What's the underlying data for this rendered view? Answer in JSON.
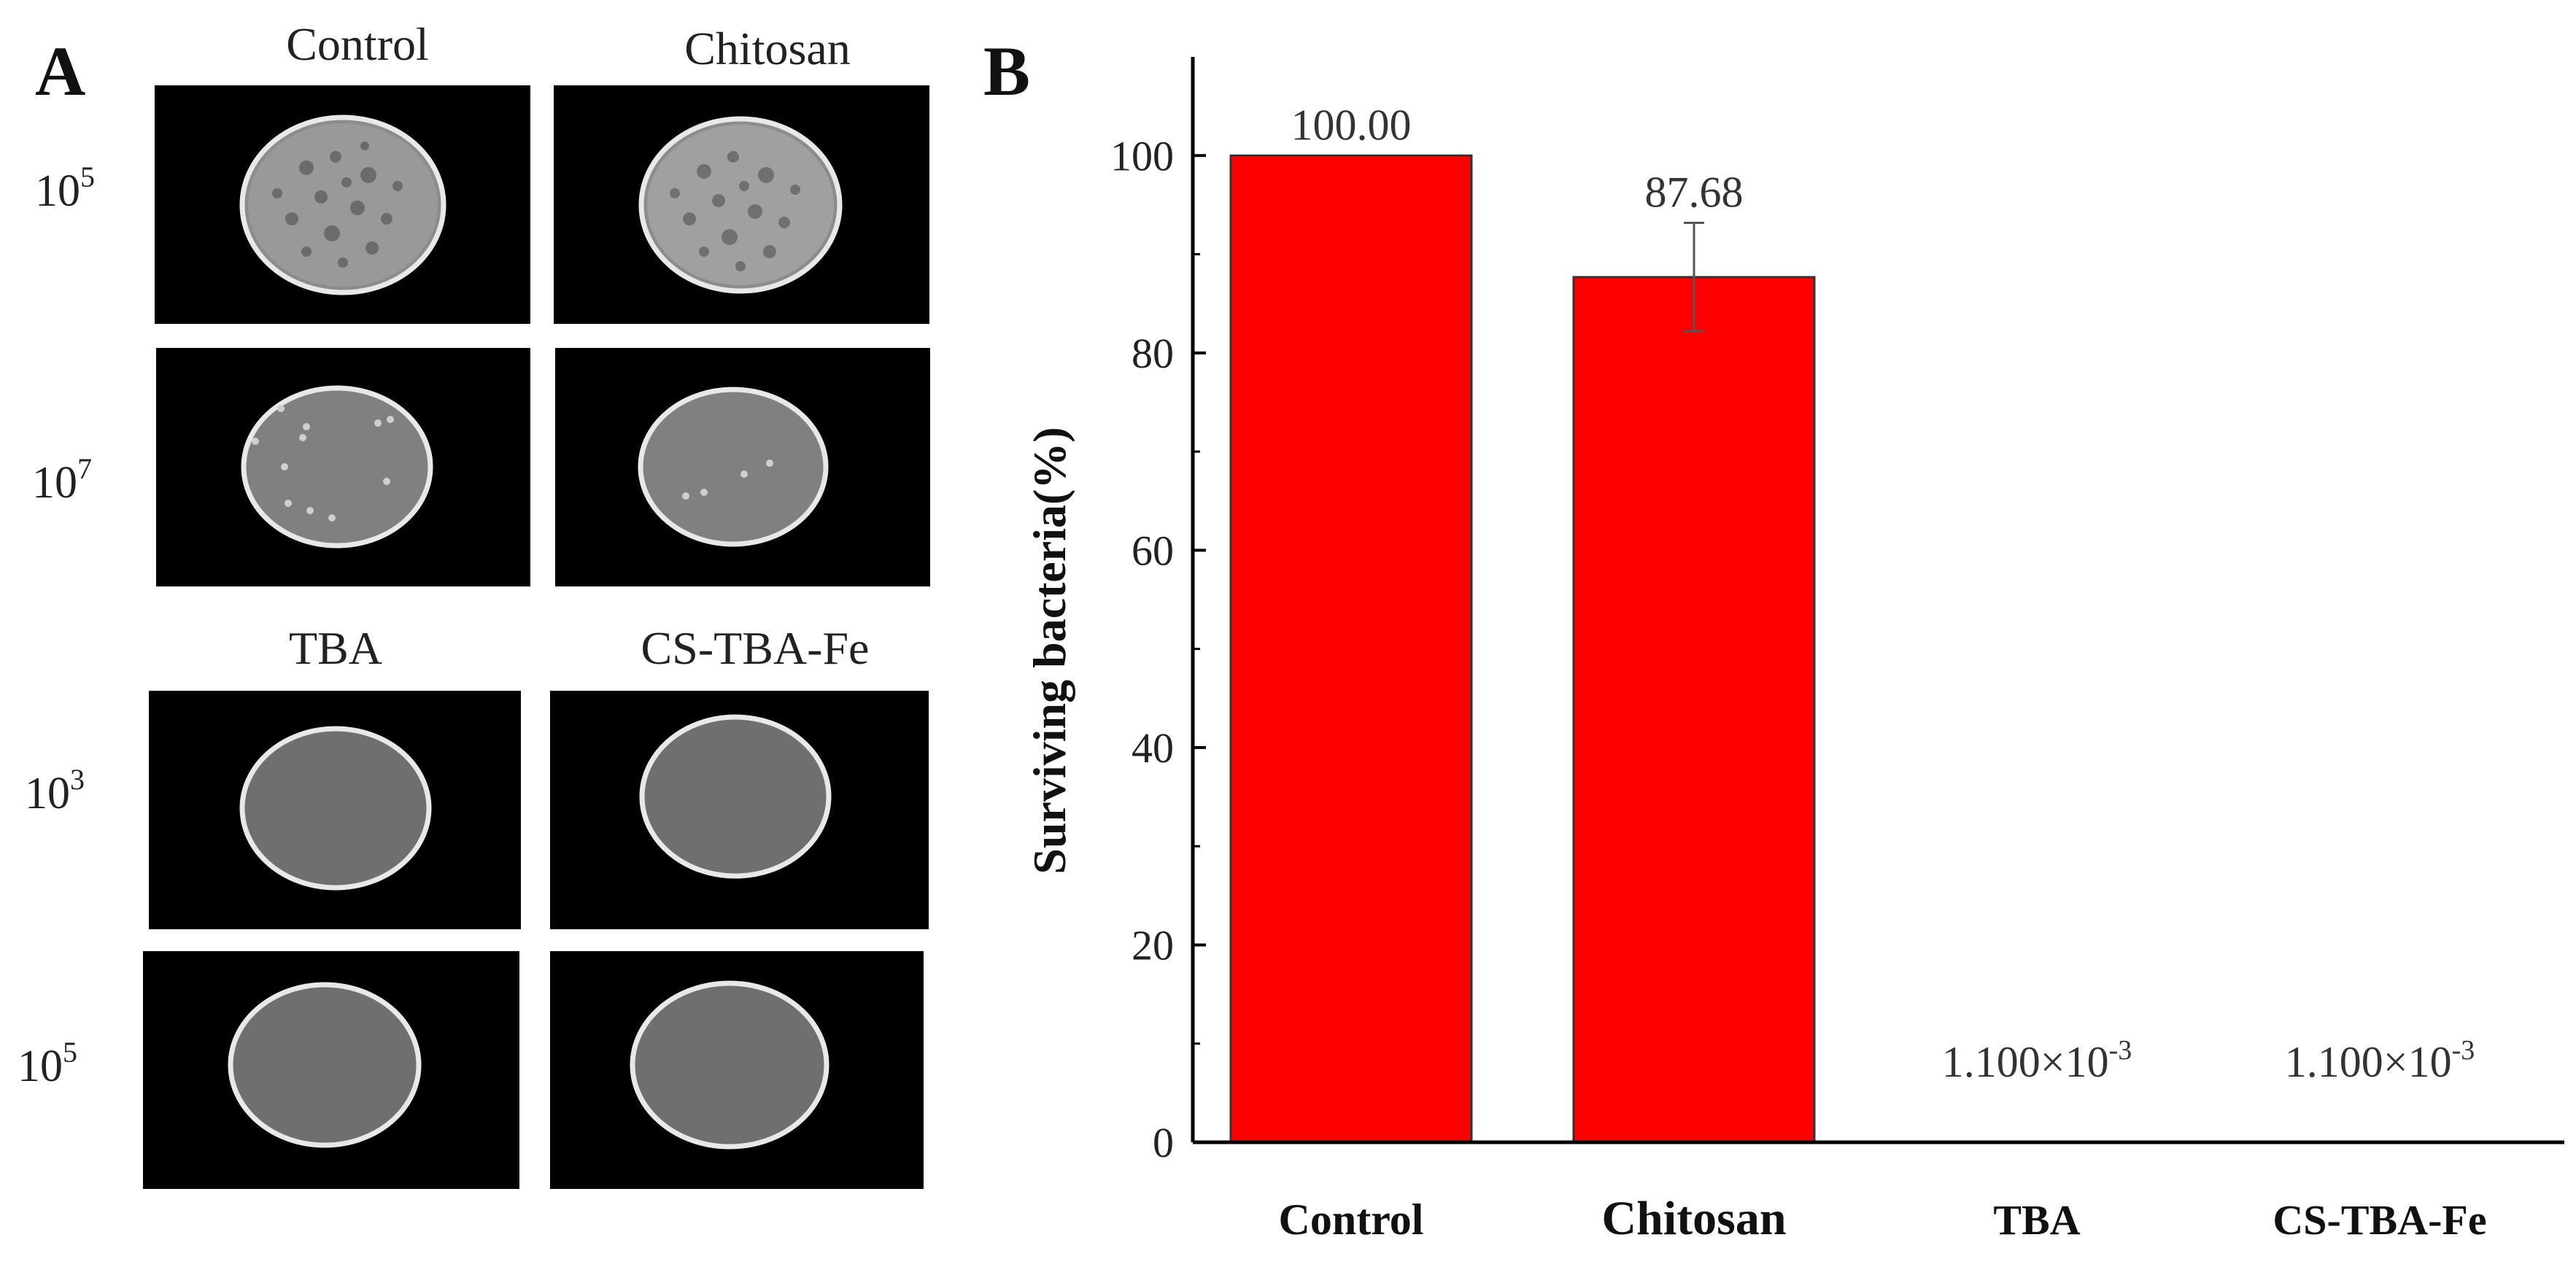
{
  "panel_a": {
    "letter": "A",
    "top_columns": [
      "Control",
      "Chitosan"
    ],
    "top_rows": [
      {
        "exp": "5",
        "colonies": [
          "lawn",
          "lawn"
        ]
      },
      {
        "exp": "7",
        "colonies": [
          "few",
          "few"
        ]
      }
    ],
    "bottom_columns": [
      "TBA",
      "CS-TBA-Fe"
    ],
    "bottom_rows": [
      {
        "exp": "3",
        "colonies": [
          "none",
          "none"
        ]
      },
      {
        "exp": "5",
        "colonies": [
          "none",
          "none"
        ]
      }
    ],
    "row_base": "10"
  },
  "chart_data": {
    "type": "bar",
    "panel_letter": "B",
    "title": "",
    "xlabel": "",
    "ylabel": "Surviving bacteria(%)",
    "categories": [
      "Control",
      "Chitosan",
      "TBA",
      "CS-TBA-Fe"
    ],
    "values": [
      100.0,
      87.68,
      0.0011,
      0.0011
    ],
    "errors": [
      0,
      5.5,
      0,
      0
    ],
    "data_labels": [
      {
        "mantissa": "100.00",
        "exp": ""
      },
      {
        "mantissa": "87.68",
        "exp": ""
      },
      {
        "mantissa": "1.100×10",
        "exp": "-3"
      },
      {
        "mantissa": "1.100×10",
        "exp": "-3"
      }
    ],
    "ylim": [
      0,
      110
    ],
    "yticks": [
      0,
      20,
      40,
      60,
      80,
      100
    ],
    "bar_color": "#ff0000",
    "grid": false
  }
}
